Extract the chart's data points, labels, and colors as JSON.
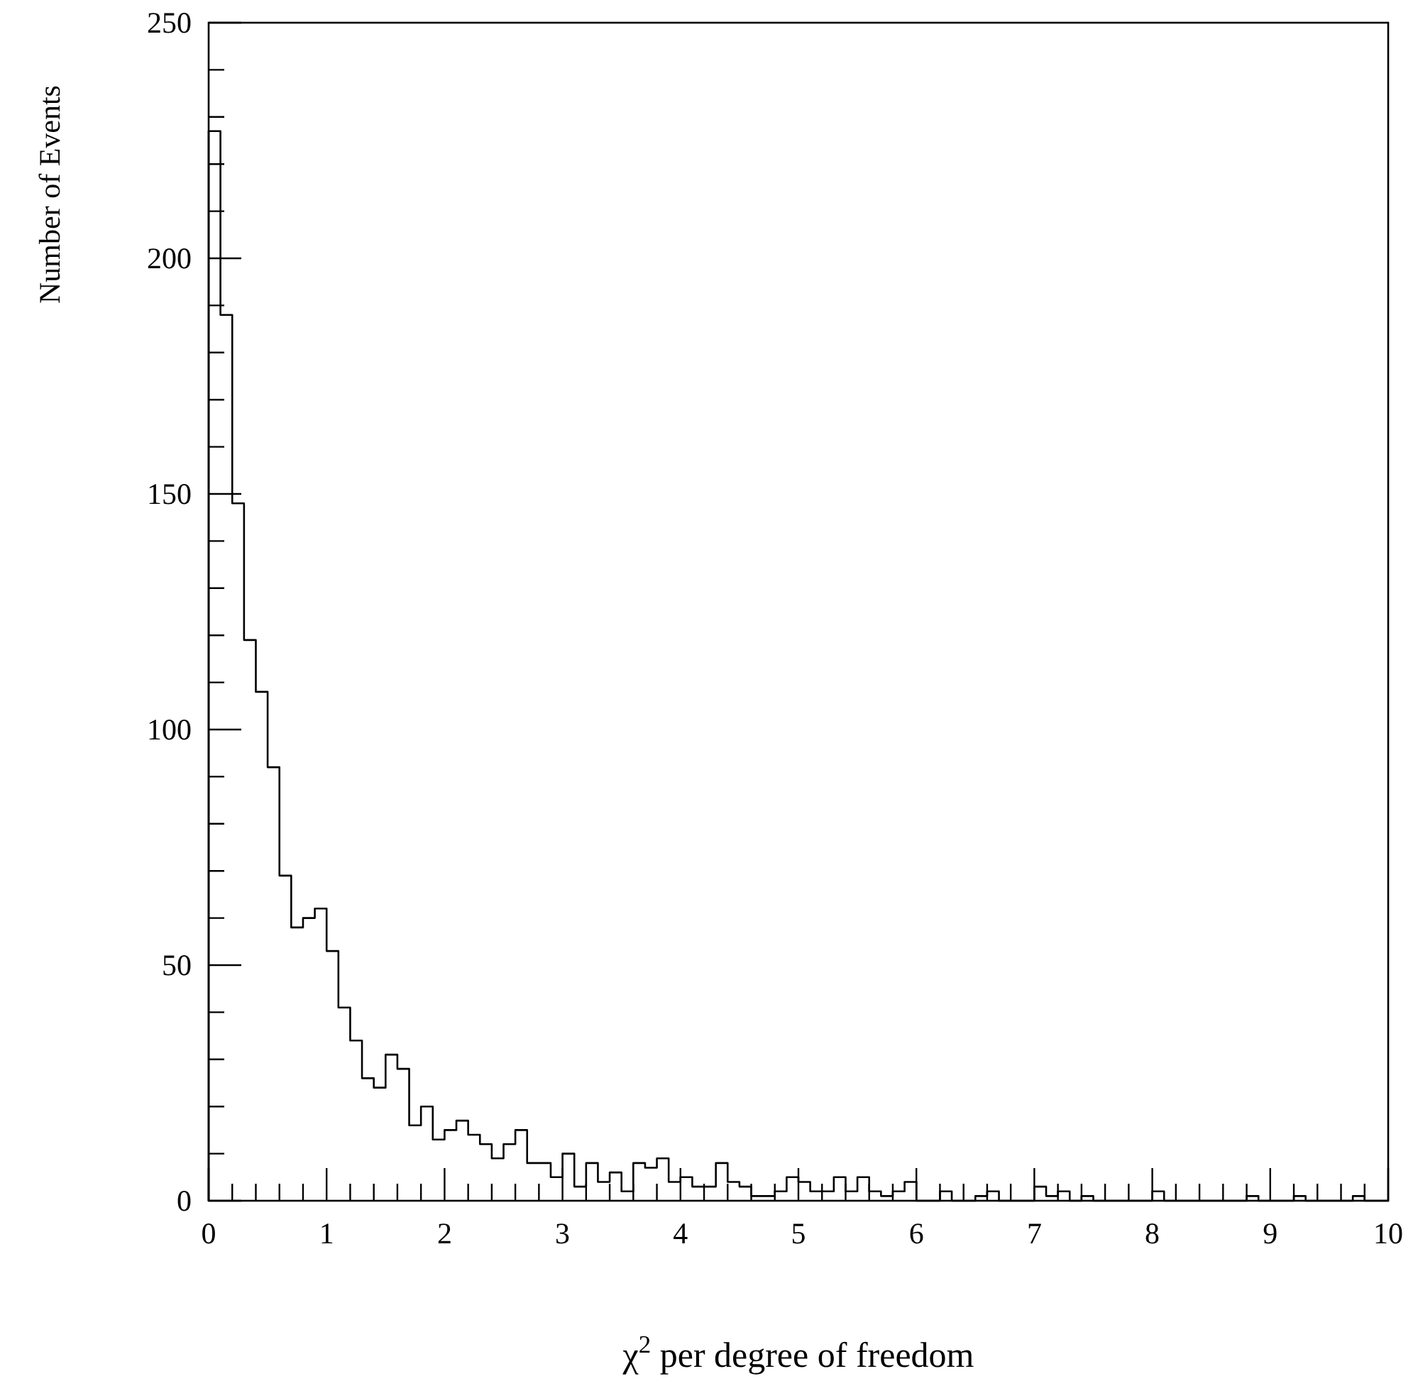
{
  "chart_data": {
    "type": "histogram",
    "xlabel": "χ$^{2}$ per degree of freedom",
    "ylabel": "Number of Events",
    "color": "#000000",
    "bins": [
      0,
      0.1,
      0.2,
      0.3,
      0.4,
      0.5,
      0.6,
      0.7,
      0.8,
      0.9,
      1,
      1.1,
      1.2,
      1.3,
      1.4,
      1.5,
      1.6,
      1.7,
      1.8,
      1.9,
      2,
      2.1,
      2.2,
      2.3,
      2.4,
      2.5,
      2.6,
      2.7,
      2.8,
      2.9,
      3,
      3.1,
      3.2,
      3.3,
      3.4,
      3.5,
      3.6,
      3.7,
      3.8,
      3.9,
      4,
      4.1,
      4.2,
      4.3,
      4.4,
      4.5,
      4.6,
      4.7,
      4.8,
      4.9,
      5,
      5.1,
      5.2,
      5.3,
      5.4,
      5.5,
      5.6,
      5.7,
      5.8,
      5.9,
      6,
      6.1,
      6.2,
      6.3,
      6.4,
      6.5,
      6.6,
      6.7,
      6.8,
      6.9,
      7,
      7.1,
      7.2,
      7.3,
      7.4,
      7.5,
      7.6,
      7.7,
      7.8,
      7.9,
      8,
      8.1,
      8.2,
      8.3,
      8.4,
      8.5,
      8.6,
      8.7,
      8.8,
      8.9,
      9,
      9.1,
      9.2,
      9.3,
      9.4,
      9.5,
      9.6,
      9.7,
      9.8,
      9.9,
      10
    ],
    "values": [
      227,
      188,
      148,
      119,
      108,
      92,
      69,
      58,
      60,
      62,
      53,
      41,
      34,
      26,
      24,
      31,
      28,
      16,
      20,
      13,
      15,
      17,
      14,
      12,
      9,
      12,
      15,
      8,
      8,
      5,
      10,
      3,
      8,
      4,
      6,
      2,
      8,
      7,
      9,
      4,
      5,
      3,
      3,
      8,
      4,
      3,
      1,
      1,
      2,
      5,
      4,
      2,
      2,
      5,
      2,
      5,
      2,
      1,
      2,
      4,
      0,
      0,
      2,
      0,
      0,
      1,
      2,
      0,
      0,
      0,
      3,
      1,
      2,
      0,
      1,
      0,
      0,
      0,
      0,
      0,
      2,
      0,
      0,
      0,
      0,
      0,
      0,
      0,
      1,
      0,
      0,
      0,
      1,
      0,
      0,
      0,
      0,
      1,
      0,
      0
    ],
    "xlim": [
      0,
      10
    ],
    "ylim": [
      0,
      250
    ],
    "xticks": [
      0,
      {
        "value": 0.2,
        "label": null
      },
      {
        "value": 0.4,
        "label": null
      },
      {
        "value": 0.6,
        "label": null
      },
      {
        "value": 0.8,
        "label": null
      },
      1,
      {
        "value": 1.2,
        "label": null
      },
      {
        "value": 1.4,
        "label": null
      },
      {
        "value": 1.6,
        "label": null
      },
      {
        "value": 1.8,
        "label": null
      },
      2,
      {
        "value": 2.2,
        "label": null
      },
      {
        "value": 2.4,
        "label": null
      },
      {
        "value": 2.6,
        "label": null
      },
      {
        "value": 2.8,
        "label": null
      },
      3,
      {
        "value": 3.2,
        "label": null
      },
      {
        "value": 3.4,
        "label": null
      },
      {
        "value": 3.6,
        "label": null
      },
      {
        "value": 3.8,
        "label": null
      },
      4,
      {
        "value": 4.2,
        "label": null
      },
      {
        "value": 4.4,
        "label": null
      },
      {
        "value": 4.6,
        "label": null
      },
      {
        "value": 4.8,
        "label": null
      },
      5,
      {
        "value": 5.2,
        "label": null
      },
      {
        "value": 5.4,
        "label": null
      },
      {
        "value": 5.6,
        "label": null
      },
      {
        "value": 5.8,
        "label": null
      },
      6,
      {
        "value": 6.2,
        "label": null
      },
      {
        "value": 6.4,
        "label": null
      },
      {
        "value": 6.6,
        "label": null
      },
      {
        "value": 6.8,
        "label": null
      },
      7,
      {
        "value": 7.2,
        "label": null
      },
      {
        "value": 7.4,
        "label": null
      },
      {
        "value": 7.6,
        "label": null
      },
      {
        "value": 7.8,
        "label": null
      },
      8,
      {
        "value": 8.2,
        "label": null
      },
      {
        "value": 8.4,
        "label": null
      },
      {
        "value": 8.6,
        "label": null
      },
      {
        "value": 8.8,
        "label": null
      },
      9,
      {
        "value": 9.2,
        "label": null
      },
      {
        "value": 9.4,
        "label": null
      },
      {
        "value": 9.6,
        "label": null
      },
      {
        "value": 9.8,
        "label": null
      },
      10
    ],
    "yticks": [
      0,
      {
        "value": 10,
        "label": null
      },
      {
        "value": 20,
        "label": null
      },
      {
        "value": 30,
        "label": null
      },
      {
        "value": 40,
        "label": null
      },
      50,
      {
        "value": 60,
        "label": null
      },
      {
        "value": 70,
        "label": null
      },
      {
        "value": 80,
        "label": null
      },
      {
        "value": 90,
        "label": null
      },
      100,
      {
        "value": 110,
        "label": null
      },
      {
        "value": 120,
        "label": null
      },
      {
        "value": 130,
        "label": null
      },
      {
        "value": 140,
        "label": null
      },
      150,
      {
        "value": 160,
        "label": null
      },
      {
        "value": 170,
        "label": null
      },
      {
        "value": 180,
        "label": null
      },
      {
        "value": 190,
        "label": null
      },
      200,
      {
        "value": 210,
        "label": null
      },
      {
        "value": 220,
        "label": null
      },
      {
        "value": 230,
        "label": null
      },
      {
        "value": 240,
        "label": null
      },
      250
    ],
    "grid": false
  }
}
